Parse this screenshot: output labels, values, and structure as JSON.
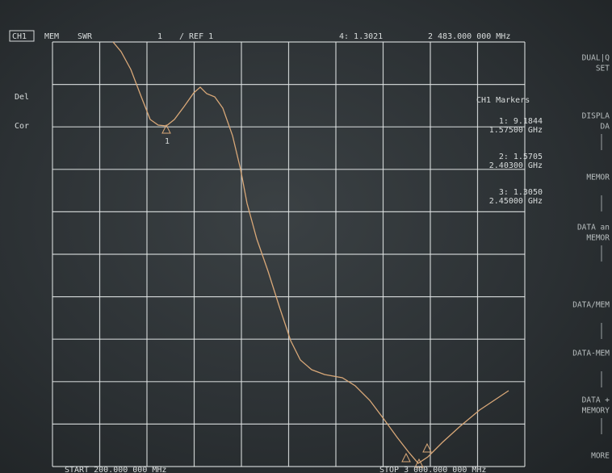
{
  "header": {
    "channel": "CH1",
    "mode": "MEM",
    "format": "SWR",
    "scale": "1",
    "reference": "/ REF 1",
    "active_marker": "4: 1.3021",
    "active_frequency": "2 483.000 000 MHz"
  },
  "status": [
    "Del",
    "Cor"
  ],
  "markers": {
    "title": "CH1 Markers",
    "items": [
      {
        "value": "1: 9.1844",
        "frequency": "1.57500 GHz"
      },
      {
        "value": "2: 1.5705",
        "frequency": "2.40300 GHz"
      },
      {
        "value": "3: 1.3050",
        "frequency": "2.45000 GHz"
      }
    ]
  },
  "trace": {
    "marker_flag_1": "1"
  },
  "softkeys": [
    [
      "DUAL|Q",
      "SET"
    ],
    [
      "DISPLA",
      "DA"
    ],
    [
      "MEMOR"
    ],
    [
      "DATA an",
      "MEMOR"
    ],
    [
      "DATA/MEM"
    ],
    [
      "DATA-MEM"
    ],
    [
      "DATA +",
      "MEMORY"
    ],
    [
      "MORE"
    ]
  ],
  "footer": {
    "start": "START 200.000 000 MHz",
    "stop": "STOP 3 000.000 000 MHz"
  }
}
